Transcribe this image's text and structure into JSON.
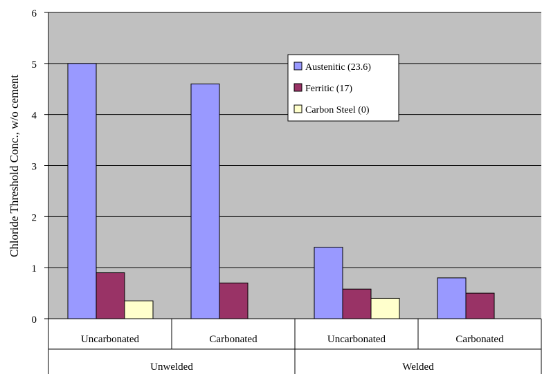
{
  "chart_data": {
    "type": "bar",
    "title": "",
    "xlabel": "",
    "ylabel": "Chloride Threshold Conc., w/o cement",
    "ylim": [
      0,
      6
    ],
    "yticks": [
      0,
      1,
      2,
      3,
      4,
      5,
      6
    ],
    "grid": true,
    "legend_position": "top-center",
    "background_color": "#c0c0c0",
    "categories": [
      "Uncarbonated",
      "Carbonated",
      "Uncarbonated",
      "Carbonated"
    ],
    "groups": [
      {
        "label": "Unwelded",
        "span": 2
      },
      {
        "label": "Welded",
        "span": 2
      }
    ],
    "series": [
      {
        "name": "Austenitic (23.6)",
        "color": "#9999ff",
        "values": [
          5.0,
          4.6,
          1.4,
          0.8
        ]
      },
      {
        "name": "Ferritic (17)",
        "color": "#993366",
        "values": [
          0.9,
          0.7,
          0.58,
          0.5
        ]
      },
      {
        "name": "Carbon Steel (0)",
        "color": "#ffffcc",
        "values": [
          0.35,
          0,
          0.4,
          0
        ]
      }
    ]
  }
}
